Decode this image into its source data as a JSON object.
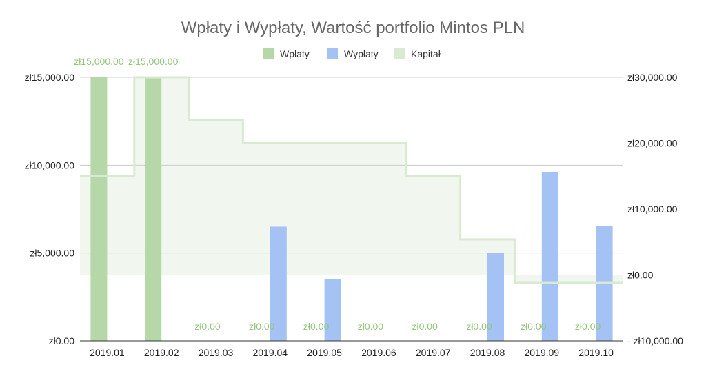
{
  "chart_data": {
    "type": "bar",
    "title": "Wpłaty i Wypłaty, Wartość portfolio  Mintos PLN",
    "categories": [
      "2019.01",
      "2019.02",
      "2019.03",
      "2019.04",
      "2019.05",
      "2019.06",
      "2019.07",
      "2019.08",
      "2019.09",
      "2019.10"
    ],
    "left_axis": {
      "ylim": [
        0,
        15000
      ],
      "ticks": [
        0,
        5000,
        10000,
        15000
      ],
      "tick_labels": [
        "zł0.00",
        "zł5,000.00",
        "zł10,000.00",
        "zł15,000.00"
      ]
    },
    "right_axis": {
      "ylim": [
        -10000,
        30000
      ],
      "ticks": [
        -10000,
        0,
        10000,
        20000,
        30000
      ],
      "tick_labels": [
        "- zł10,000.00",
        "zł0.00",
        "zł10,000.00",
        "zł20,000.00",
        "zł30,000.00"
      ]
    },
    "legend_position": "top",
    "grid": true,
    "series": [
      {
        "name": "Wpłaty",
        "type": "bar",
        "axis": "left",
        "color": "#b6d7a8",
        "values": [
          15000,
          15000,
          0,
          0,
          0,
          0,
          0,
          0,
          0,
          0
        ],
        "data_labels": [
          "zł15,000.00",
          "zł15,000.00",
          "zł0.00",
          "zł0.00",
          "zł0.00",
          "zł0.00",
          "zł0.00",
          "zł0.00",
          "zł0.00",
          "zł0.00"
        ],
        "label_color": "#93c47d"
      },
      {
        "name": "Wypłaty",
        "type": "bar",
        "axis": "left",
        "color": "#a4c2f4",
        "values": [
          0,
          0,
          0,
          6500,
          3500,
          0,
          0,
          5000,
          9600,
          6550
        ]
      },
      {
        "name": "Kapitał",
        "type": "stepped-area",
        "axis": "right",
        "line_color": "#d9ead3",
        "fill_color": "#f1f7ee",
        "values": [
          15000,
          30000,
          23500,
          20000,
          20000,
          20000,
          15000,
          5400,
          -1200,
          -1200
        ]
      }
    ]
  }
}
